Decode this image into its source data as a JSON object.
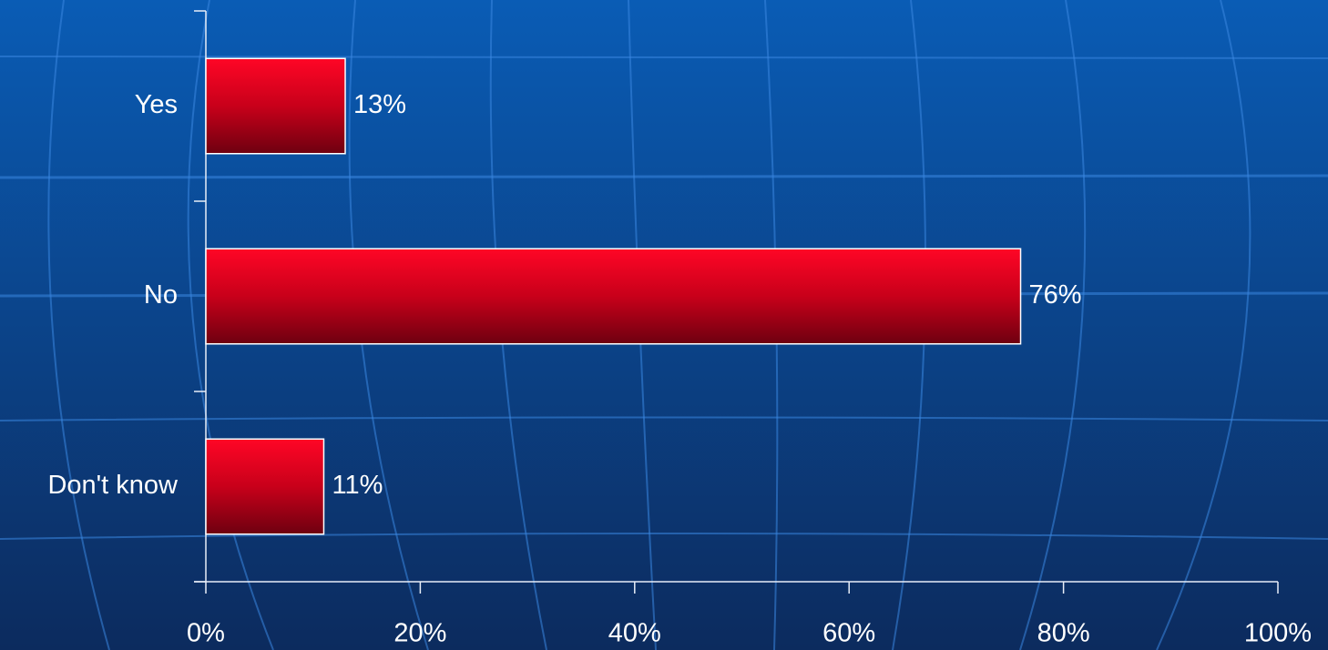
{
  "chart_data": {
    "type": "bar",
    "orientation": "horizontal",
    "categories": [
      "Yes",
      "No",
      "Don't know"
    ],
    "values": [
      13,
      76,
      11
    ],
    "value_labels": [
      "13%",
      "76%",
      "11%"
    ],
    "color": "#ff0022",
    "xlim": [
      0,
      100
    ],
    "xticks": [
      {
        "value": 0,
        "label": "0%"
      },
      {
        "value": 20,
        "label": "20%"
      },
      {
        "value": 40,
        "label": "40%"
      },
      {
        "value": 60,
        "label": "60%"
      },
      {
        "value": 80,
        "label": "80%"
      },
      {
        "value": 100,
        "label": "100%"
      }
    ],
    "grid": false
  }
}
